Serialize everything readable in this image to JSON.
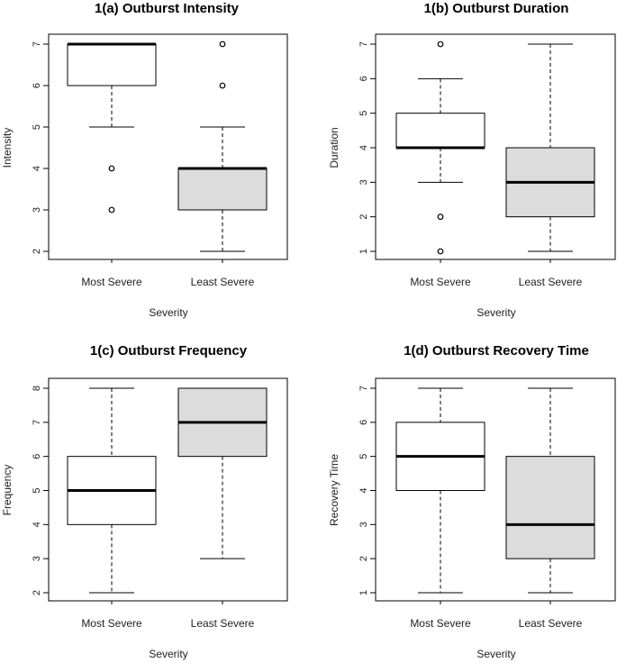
{
  "figure": {
    "fill_colors": [
      "#ffffff",
      "#dcdcdc"
    ]
  },
  "chart_data": [
    {
      "type": "boxplot",
      "title": "1(a) Outburst Intensity",
      "xlabel": "Severity",
      "ylabel": "Intensity",
      "ylim": [
        2,
        7
      ],
      "yticks": [
        "2",
        "3",
        "4",
        "5",
        "6",
        "7"
      ],
      "categories": [
        "Most Severe",
        "Least Severe"
      ],
      "boxes": [
        {
          "min": 5,
          "q1": 6,
          "median": 7,
          "q3": 7,
          "max": 7,
          "outliers": [
            4,
            3
          ]
        },
        {
          "min": 2,
          "q1": 3,
          "median": 4,
          "q3": 4,
          "max": 5,
          "outliers": [
            7,
            6
          ]
        }
      ]
    },
    {
      "type": "boxplot",
      "title": "1(b) Outburst Duration",
      "xlabel": "Severity",
      "ylabel": "Duration",
      "ylim": [
        1,
        7
      ],
      "yticks": [
        "1",
        "2",
        "3",
        "4",
        "5",
        "6",
        "7"
      ],
      "categories": [
        "Most Severe",
        "Least Severe"
      ],
      "boxes": [
        {
          "min": 3,
          "q1": 4,
          "median": 4,
          "q3": 5,
          "max": 6,
          "outliers": [
            7,
            2,
            1
          ]
        },
        {
          "min": 1,
          "q1": 2,
          "median": 3,
          "q3": 4,
          "max": 7,
          "outliers": []
        }
      ]
    },
    {
      "type": "boxplot",
      "title": "1(c) Outburst Frequency",
      "xlabel": "Severity",
      "ylabel": "Frequency",
      "ylim": [
        2,
        8
      ],
      "yticks": [
        "2",
        "3",
        "4",
        "5",
        "6",
        "7",
        "8"
      ],
      "categories": [
        "Most Severe",
        "Least Severe"
      ],
      "boxes": [
        {
          "min": 2,
          "q1": 4,
          "median": 5,
          "q3": 6,
          "max": 8,
          "outliers": []
        },
        {
          "min": 3,
          "q1": 6,
          "median": 7,
          "q3": 8,
          "max": 8,
          "outliers": []
        }
      ]
    },
    {
      "type": "boxplot",
      "title": "1(d) Outburst Recovery Time",
      "xlabel": "Severity",
      "ylabel": "Recovery Time",
      "ylim": [
        1,
        7
      ],
      "yticks": [
        "1",
        "2",
        "3",
        "4",
        "5",
        "6",
        "7"
      ],
      "categories": [
        "Most Severe",
        "Least Severe"
      ],
      "boxes": [
        {
          "min": 1,
          "q1": 4,
          "median": 5,
          "q3": 6,
          "max": 7,
          "outliers": []
        },
        {
          "min": 1,
          "q1": 2,
          "median": 3,
          "q3": 5,
          "max": 7,
          "outliers": []
        }
      ]
    }
  ]
}
